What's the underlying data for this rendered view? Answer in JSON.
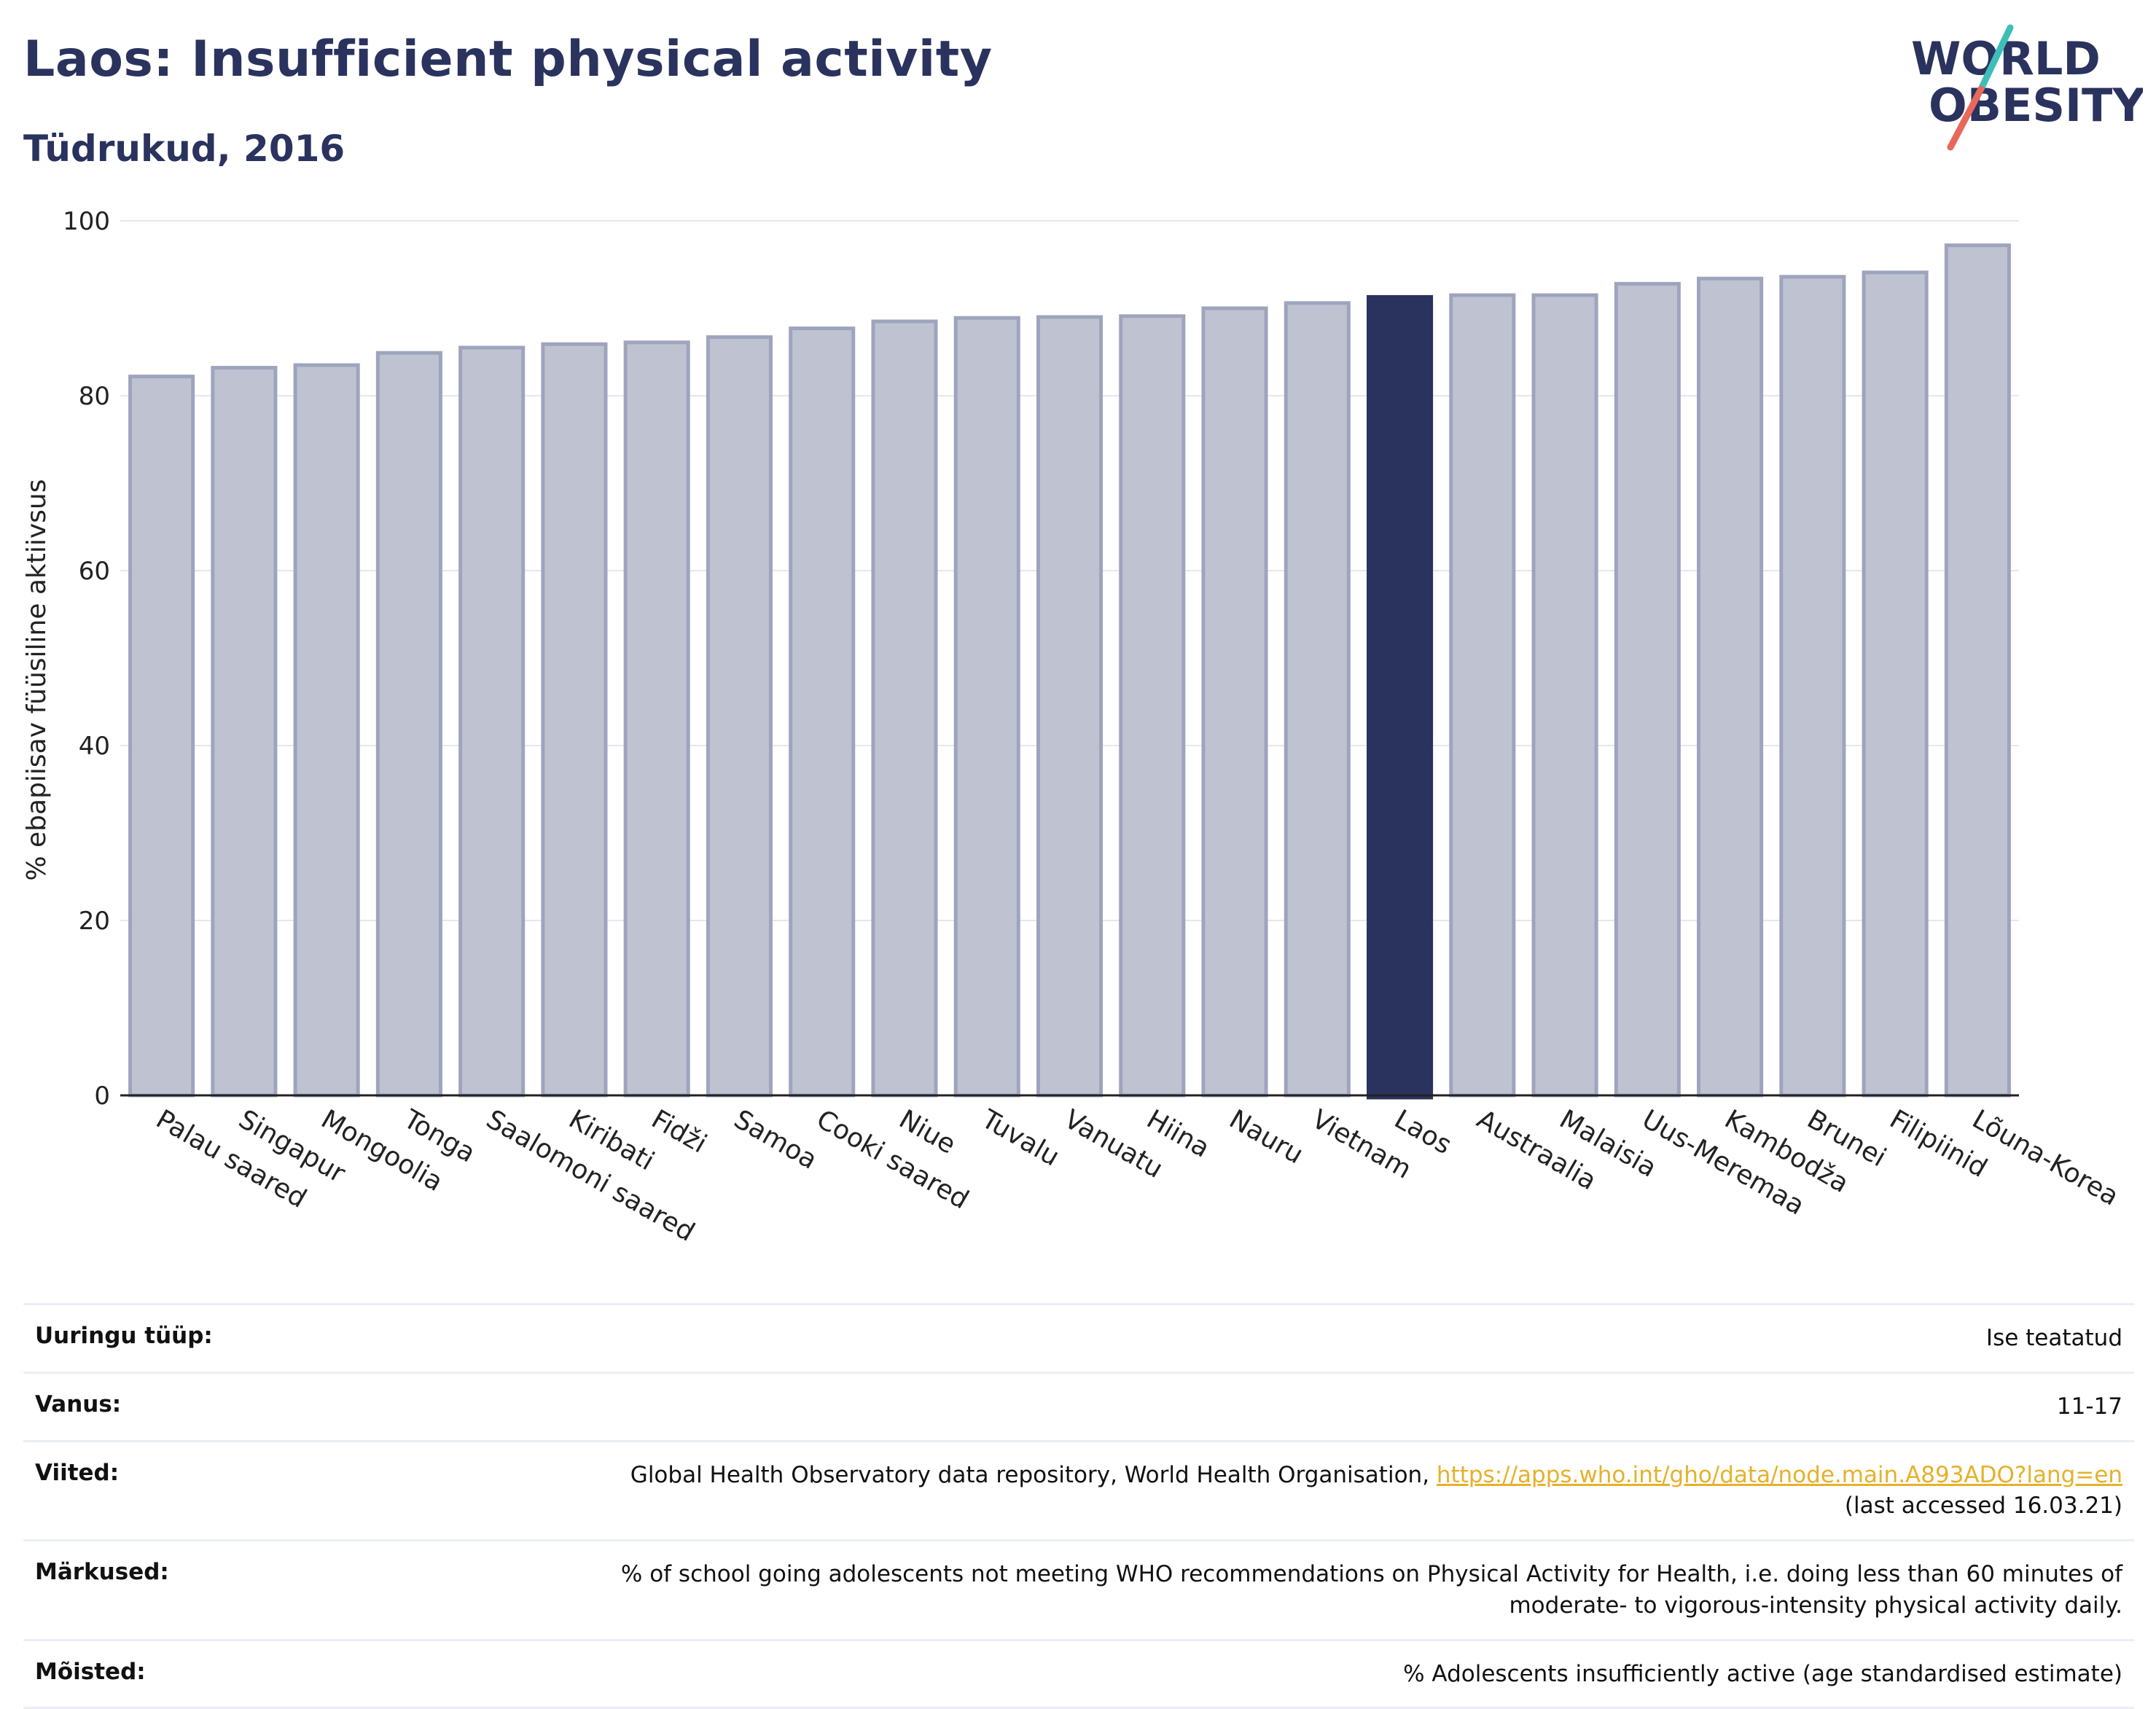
{
  "header": {
    "title": "Laos: Insufficient physical activity",
    "subtitle": "Tüdrukud, 2016"
  },
  "logo": {
    "line1": "WORLD",
    "line2": "OBESITY",
    "colors": {
      "navy": "#2a335e",
      "teal": "#3dbfb8",
      "coral": "#e8685a"
    }
  },
  "chart_data": {
    "type": "bar",
    "title": "Laos: Insufficient physical activity",
    "subtitle": "Tüdrukud, 2016",
    "xlabel": "",
    "ylabel": "% ebapiisav füüsiline aktiivsus",
    "ylim": [
      0,
      100
    ],
    "yticks": [
      0,
      20,
      40,
      60,
      80,
      100
    ],
    "grid": true,
    "highlight": "Laos",
    "colors": {
      "bar": "#bfc3d1",
      "bar_edge": "#9ea4bd",
      "highlight": "#2a335e",
      "grid": "#e6e7ee",
      "axis": "#222222"
    },
    "categories": [
      "Palau saared",
      "Singapur",
      "Mongoolia",
      "Tonga",
      "Saalomoni saared",
      "Kiribati",
      "Fidži",
      "Samoa",
      "Cooki saared",
      "Niue",
      "Tuvalu",
      "Vanuatu",
      "Hiina",
      "Nauru",
      "Vietnam",
      "Laos",
      "Austraalia",
      "Malaisia",
      "Uus-Meremaa",
      "Kambodža",
      "Brunei",
      "Filipiinid",
      "Lõuna-Korea"
    ],
    "values": [
      82.2,
      83.2,
      83.5,
      84.9,
      85.5,
      85.9,
      86.1,
      86.7,
      87.7,
      88.5,
      88.9,
      89.0,
      89.1,
      90.0,
      90.6,
      91.3,
      91.5,
      91.5,
      92.8,
      93.4,
      93.6,
      94.1,
      97.2
    ]
  },
  "meta": {
    "survey_type_label": "Uuringu tüüp:",
    "survey_type_value": "Ise teatatud",
    "age_label": "Vanus:",
    "age_value": "11-17",
    "references_label": "Viited:",
    "references_text": "Global Health Observatory data repository, World Health Organisation,",
    "references_link": "https://apps.who.int/gho/data/node.main.A893ADO?lang=en",
    "references_accessed": "(last accessed 16.03.21)",
    "notes_label": "Märkused:",
    "notes_line1": "% of school going adolescents not meeting WHO recommendations on Physical Activity for Health, i.e. doing less than 60 minutes of",
    "notes_line2": "moderate- to vigorous-intensity physical activity daily.",
    "definitions_label": "Mõisted:",
    "definitions_value": "% Adolescents insufficiently active (age standardised estimate)"
  }
}
